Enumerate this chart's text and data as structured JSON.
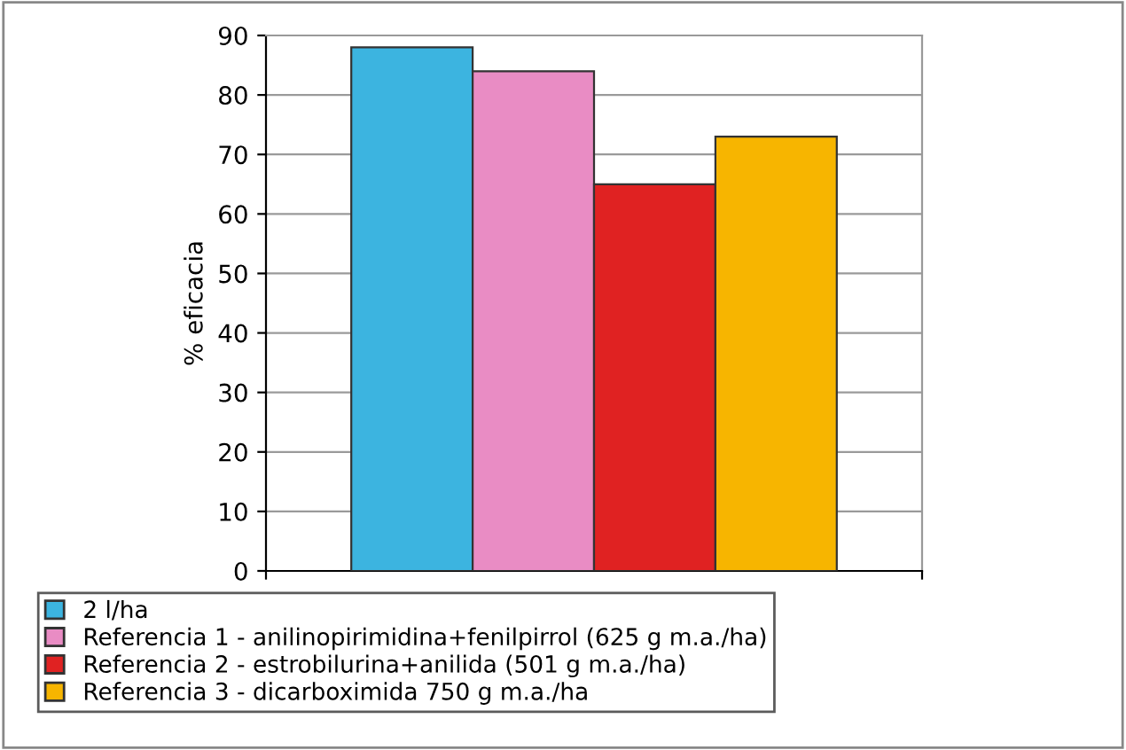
{
  "chart_data": {
    "type": "bar",
    "ylabel": "% eficacia",
    "categories": [
      null
    ],
    "series": [
      {
        "name": "2 l/ha",
        "color": "#3cb4e0",
        "values": [
          88
        ]
      },
      {
        "name": "Referencia 1 - anilinopirimidina+fenilpirrol (625 g m.a./ha)",
        "color": "#e98cc4",
        "values": [
          84
        ]
      },
      {
        "name": "Referencia 2 - estrobilurina+anilida (501 g m.a./ha)",
        "color": "#e02222",
        "values": [
          65
        ]
      },
      {
        "name": "Referencia 3 - dicarboximida 750 g m.a./ha",
        "color": "#f7b500",
        "values": [
          73
        ]
      }
    ],
    "ylim": [
      0,
      90
    ],
    "yticks": [
      0,
      10,
      20,
      30,
      40,
      50,
      60,
      70,
      80,
      90
    ],
    "grid": "y",
    "legend": "bottom"
  }
}
